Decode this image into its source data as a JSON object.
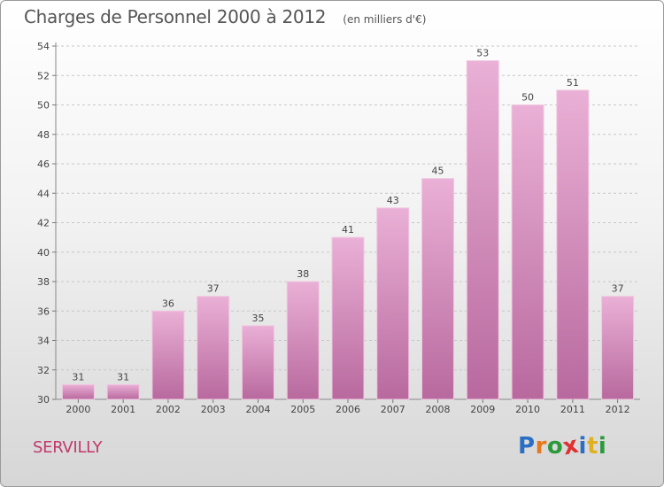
{
  "title": "Charges de Personnel 2000 à 2012",
  "unit": "(en milliers d'€)",
  "footer_label": "SERVILLY",
  "logo": {
    "letters": [
      "P",
      "r",
      "o",
      "x",
      "i",
      "t",
      "i"
    ],
    "colors": [
      "#2a6fc4",
      "#e8781e",
      "#2a9a3c",
      "#e03030",
      "#2a6fc4",
      "#e0b020",
      "#2a9a3c"
    ]
  },
  "colors": {
    "bar": "#d68fbf",
    "bar_light": "#eab0d6",
    "bar_dark": "#b8699e",
    "footer": "#c0396b"
  },
  "chart_data": {
    "type": "bar",
    "categories": [
      "2000",
      "2001",
      "2002",
      "2003",
      "2004",
      "2005",
      "2006",
      "2007",
      "2008",
      "2009",
      "2010",
      "2011",
      "2012"
    ],
    "values": [
      31,
      31,
      36,
      37,
      35,
      38,
      41,
      43,
      45,
      53,
      50,
      51,
      37
    ],
    "title": "Charges de Personnel 2000 à 2012",
    "ylim": [
      30,
      54
    ],
    "yticks": [
      30,
      32,
      34,
      36,
      38,
      40,
      42,
      44,
      46,
      48,
      50,
      52,
      54
    ],
    "grid": true
  }
}
